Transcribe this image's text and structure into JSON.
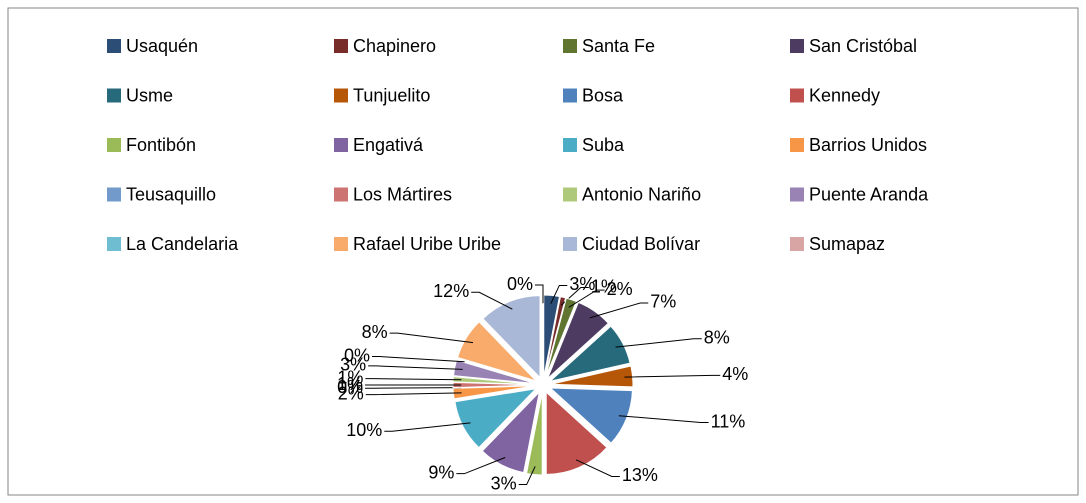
{
  "chart_data": {
    "type": "pie",
    "categories": [
      "Usaquén",
      "Chapinero",
      "Santa Fe",
      "San Cristóbal",
      "Usme",
      "Tunjuelito",
      "Bosa",
      "Kennedy",
      "Fontibón",
      "Engativá",
      "Suba",
      "Barrios Unidos",
      "Teusaquillo",
      "Los Mártires",
      "Antonio Nariño",
      "Puente Aranda",
      "La Candelaria",
      "Rafael Uribe Uribe",
      "Ciudad Bolívar",
      "Sumapaz"
    ],
    "values": [
      3,
      1,
      2,
      7,
      8,
      4,
      11,
      13,
      3,
      9,
      10,
      2,
      0,
      1,
      1,
      3,
      0,
      8,
      12,
      0
    ],
    "value_labels": [
      "3%",
      "1%",
      "2%",
      "7%",
      "8%",
      "4%",
      "11%",
      "13%",
      "3%",
      "9%",
      "10%",
      "2%",
      "0%",
      "1%",
      "1%",
      "3%",
      "0%",
      "8%",
      "12%",
      "0%"
    ],
    "colors": [
      "#2C4D75",
      "#772C2A",
      "#5F7530",
      "#4D3B62",
      "#276A7C",
      "#B65708",
      "#4F81BD",
      "#C0504D",
      "#9BBB59",
      "#8064A2",
      "#4BACC6",
      "#F79646",
      "#729ACA",
      "#CD7371",
      "#AFC97A",
      "#9983B5",
      "#6FBDD1",
      "#F9AB6B",
      "#A9B8D6",
      "#D9A5A4"
    ],
    "legend": "top"
  }
}
